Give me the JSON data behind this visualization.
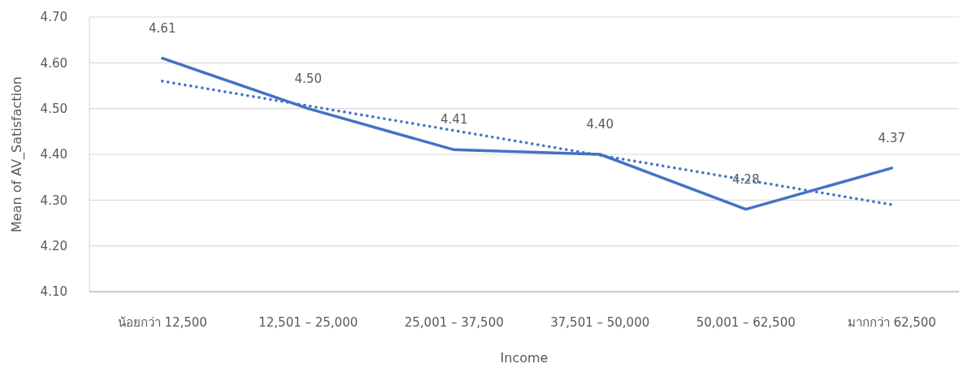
{
  "chart_data": {
    "type": "line",
    "xlabel": "Income",
    "ylabel": "Mean of AV_Satisfaction",
    "categories": [
      "น้อยกว่า 12,500",
      "12,501 – 25,000",
      "25,001 – 37,500",
      "37,501 – 50,000",
      "50,001 – 62,500",
      "มากกว่า 62,500"
    ],
    "series": [
      {
        "color": "#4472c4",
        "values": [
          4.61,
          4.5,
          4.41,
          4.4,
          4.28,
          4.37
        ],
        "value_labels": [
          "4.61",
          "4.50",
          "4.41",
          "4.40",
          "4.28",
          "4.37"
        ],
        "line_style": "solid"
      },
      {
        "type": "line",
        "color": "#4472c4",
        "x": [
          "น้อยกว่า 12,500",
          "มากกว่า 62,500"
        ],
        "values": [
          4.56,
          4.29
        ],
        "line_style": "dotted"
      }
    ],
    "ylim": [
      4.1,
      4.7
    ],
    "yticks": [
      {
        "value": 4.1,
        "label": "4.10"
      },
      {
        "value": 4.2,
        "label": "4.20"
      },
      {
        "value": 4.3,
        "label": "4.30"
      },
      {
        "value": 4.4,
        "label": "4.40"
      },
      {
        "value": 4.5,
        "label": "4.50"
      },
      {
        "value": 4.6,
        "label": "4.60"
      },
      {
        "value": 4.7,
        "label": "4.70"
      }
    ],
    "grid": "y"
  }
}
